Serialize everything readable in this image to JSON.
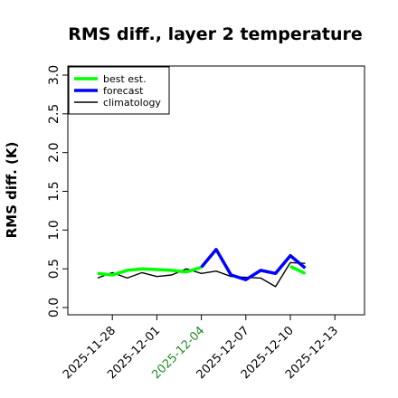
{
  "chart_data": {
    "type": "line",
    "title": "RMS diff., layer 2 temperature",
    "xlabel": "",
    "ylabel": "RMS diff. (K)",
    "ylim": [
      0.0,
      3.0
    ],
    "yticks": [
      "0.0",
      "0.5",
      "1.0",
      "1.5",
      "2.0",
      "2.5",
      "3.0"
    ],
    "xlim": [
      "2025-11-25",
      "2025-12-15"
    ],
    "xticks": [
      {
        "date": "2025-11-28",
        "label": "2025-11-28",
        "color": "#000000"
      },
      {
        "date": "2025-12-01",
        "label": "2025-12-01",
        "color": "#000000"
      },
      {
        "date": "2025-12-04",
        "label": "2025-12-04",
        "color": "#228b22"
      },
      {
        "date": "2025-12-07",
        "label": "2025-12-07",
        "color": "#000000"
      },
      {
        "date": "2025-12-10",
        "label": "2025-12-10",
        "color": "#000000"
      },
      {
        "date": "2025-12-13",
        "label": "2025-12-13",
        "color": "#000000"
      }
    ],
    "legend_position": "top-left",
    "series": [
      {
        "name": "best est.",
        "color": "#00ff00",
        "x": [
          "2025-11-27",
          "2025-11-28",
          "2025-11-29",
          "2025-11-30",
          "2025-12-01",
          "2025-12-02",
          "2025-12-03",
          "2025-12-04"
        ],
        "values": [
          0.44,
          0.42,
          0.48,
          0.5,
          0.49,
          0.48,
          0.46,
          0.52
        ]
      },
      {
        "name": "forecast",
        "color": "#0000ff",
        "x": [
          "2025-12-04",
          "2025-12-05",
          "2025-12-06",
          "2025-12-07",
          "2025-12-08",
          "2025-12-09",
          "2025-12-10",
          "2025-12-11"
        ],
        "values": [
          0.52,
          0.75,
          0.42,
          0.36,
          0.48,
          0.44,
          0.67,
          0.51
        ]
      },
      {
        "name": "best est.",
        "color": "#00ff00",
        "x": [
          "2025-12-10",
          "2025-12-11"
        ],
        "values": [
          0.53,
          0.44
        ]
      },
      {
        "name": "climatology",
        "color": "#000000",
        "x": [
          "2025-11-27",
          "2025-11-28",
          "2025-11-29",
          "2025-11-30",
          "2025-12-01",
          "2025-12-02",
          "2025-12-03",
          "2025-12-04",
          "2025-12-05",
          "2025-12-06",
          "2025-12-07",
          "2025-12-08",
          "2025-12-09",
          "2025-12-10",
          "2025-12-11"
        ],
        "values": [
          0.38,
          0.45,
          0.38,
          0.45,
          0.4,
          0.42,
          0.5,
          0.44,
          0.47,
          0.4,
          0.39,
          0.38,
          0.27,
          0.58,
          0.57
        ]
      }
    ],
    "legend": [
      {
        "name": "best est.",
        "color": "#00ff00"
      },
      {
        "name": "forecast",
        "color": "#0000ff"
      },
      {
        "name": "climatology",
        "color": "#000000"
      }
    ]
  }
}
